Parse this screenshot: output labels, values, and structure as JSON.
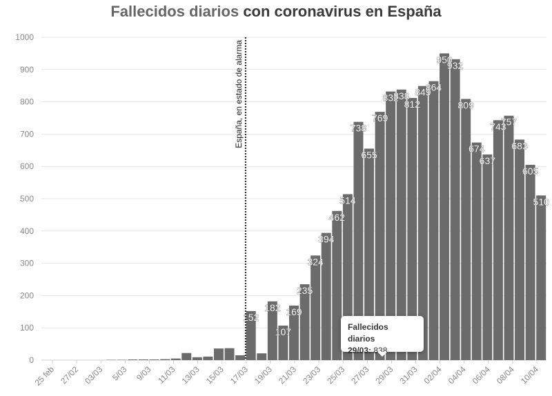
{
  "title": {
    "highlight": "Fallecidos diarios",
    "rest": " con coronavirus en España"
  },
  "colors": {
    "bar": "#6b6b6b",
    "bar_highlight": "#5a5a5a",
    "grid": "#e6e6e6",
    "axis_text": "#888888",
    "annotation_line": "#222222"
  },
  "annotation": {
    "label": "España, en estado de alarma",
    "date": "14/03"
  },
  "tooltip": {
    "title": "Fallecidos diarios",
    "date": "29/03:",
    "value": "838"
  },
  "chart_data": {
    "type": "bar",
    "title": "Fallecidos diarios con coronavirus en España",
    "xlabel": "",
    "ylabel": "",
    "ylim": [
      0,
      1000
    ],
    "yticks": [
      0,
      100,
      200,
      300,
      400,
      500,
      600,
      700,
      800,
      900,
      1000
    ],
    "grid": true,
    "x_tick_labels": [
      "25 feb",
      "27/02",
      "03/03",
      "5/03",
      "9/03",
      "11/03",
      "13/03",
      "15/03",
      "17/03",
      "19/03",
      "21/03",
      "23/03",
      "25/03",
      "27/03",
      "29/03",
      "31/03",
      "02/04",
      "04/04",
      "06/04",
      "08/04",
      "10/04"
    ],
    "categories": [
      "25/02",
      "26/02",
      "27/02",
      "28/02",
      "29/02",
      "01/03",
      "02/03",
      "03/03",
      "04/03",
      "05/03",
      "06/03",
      "07/03",
      "08/03",
      "09/03",
      "10/03",
      "11/03",
      "12/03",
      "13/03",
      "14/03",
      "15/03",
      "16/03",
      "17/03",
      "18/03",
      "19/03",
      "20/03",
      "21/03",
      "22/03",
      "23/03",
      "24/03",
      "25/03",
      "26/03",
      "27/03",
      "28/03",
      "29/03",
      "30/03",
      "31/03",
      "01/04",
      "02/04",
      "03/04",
      "04/04",
      "05/04",
      "06/04",
      "07/04",
      "08/04",
      "09/04",
      "10/04",
      "11/04"
    ],
    "values": [
      0,
      0,
      0,
      0,
      0,
      0,
      1,
      1,
      2,
      2,
      2,
      3,
      5,
      22,
      9,
      11,
      36,
      37,
      15,
      152,
      21,
      182,
      107,
      169,
      235,
      324,
      394,
      462,
      514,
      738,
      655,
      769,
      832,
      838,
      812,
      849,
      864,
      950,
      932,
      809,
      674,
      637,
      743,
      757,
      683,
      605,
      510
    ],
    "data_labels": {
      "15/03": "152",
      "17/03": "182",
      "18/03": "107",
      "19/03": "169",
      "20/03": "235",
      "21/03": "324",
      "22/03": "394",
      "23/03": "462",
      "24/03": "514",
      "25/03": "738",
      "26/03": "655",
      "27/03": "769",
      "28/03": "832",
      "29/03": "838",
      "30/03": "812",
      "31/03": "849",
      "01/04": "864",
      "02/04": "950",
      "03/04": "932",
      "04/04": "809",
      "05/04": "674",
      "06/04": "637",
      "07/04": "743",
      "08/04": "757",
      "09/04": "683",
      "10/04": "605",
      "11/04": "510"
    }
  }
}
